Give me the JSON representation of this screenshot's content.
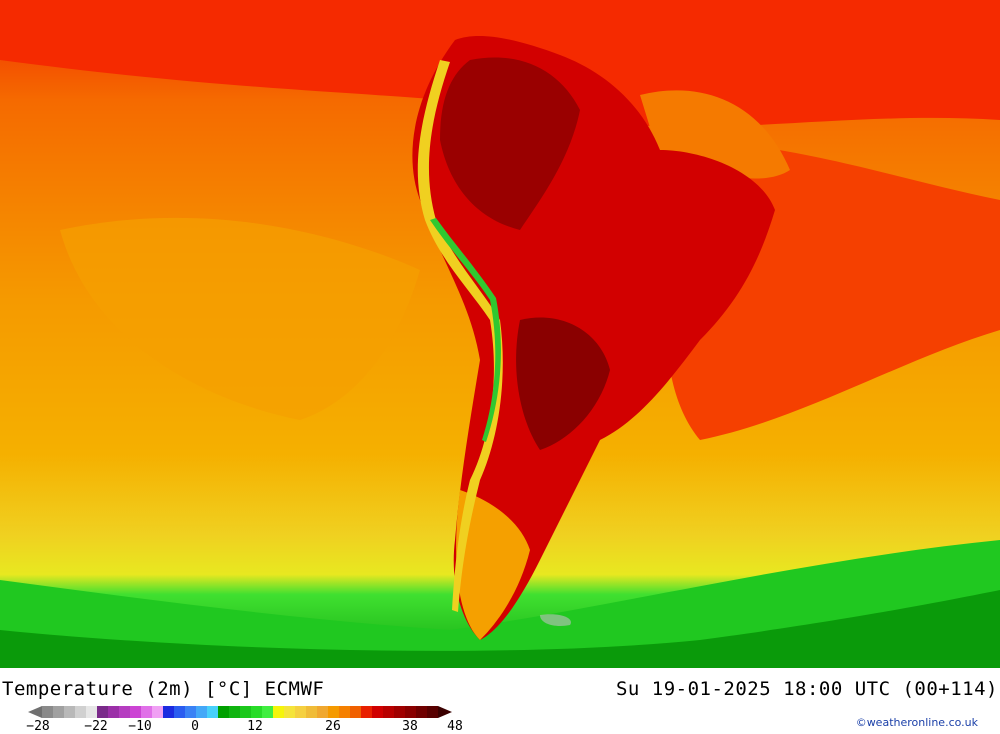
{
  "title": {
    "left": "Temperature (2m) [°C] ECMWF",
    "right": "Su 19-01-2025 18:00 UTC (00+114)"
  },
  "legend": {
    "colors": [
      "#8a8a8a",
      "#a0a0a0",
      "#b8b8b8",
      "#d0d0d0",
      "#e6e6e6",
      "#7a2a8a",
      "#9b2fa8",
      "#b53dc0",
      "#cc44d4",
      "#e070e8",
      "#f0a0f4",
      "#1c2ae0",
      "#2a5cf0",
      "#3a82f5",
      "#44a8f8",
      "#48d0fa",
      "#00a000",
      "#10b410",
      "#1cc81c",
      "#28dc28",
      "#40ee40",
      "#f5f50a",
      "#f5e43a",
      "#f5d040",
      "#f0bc38",
      "#f0a830",
      "#f59a00",
      "#f58000",
      "#f06000",
      "#e82000",
      "#d00000",
      "#b80000",
      "#a00000",
      "#8a0000",
      "#700000",
      "#580000"
    ],
    "tick_labels": [
      "-28",
      "-22",
      "-10",
      "0",
      "12",
      "26",
      "38",
      "48"
    ]
  },
  "credit": "©weatheronline.co.uk"
}
